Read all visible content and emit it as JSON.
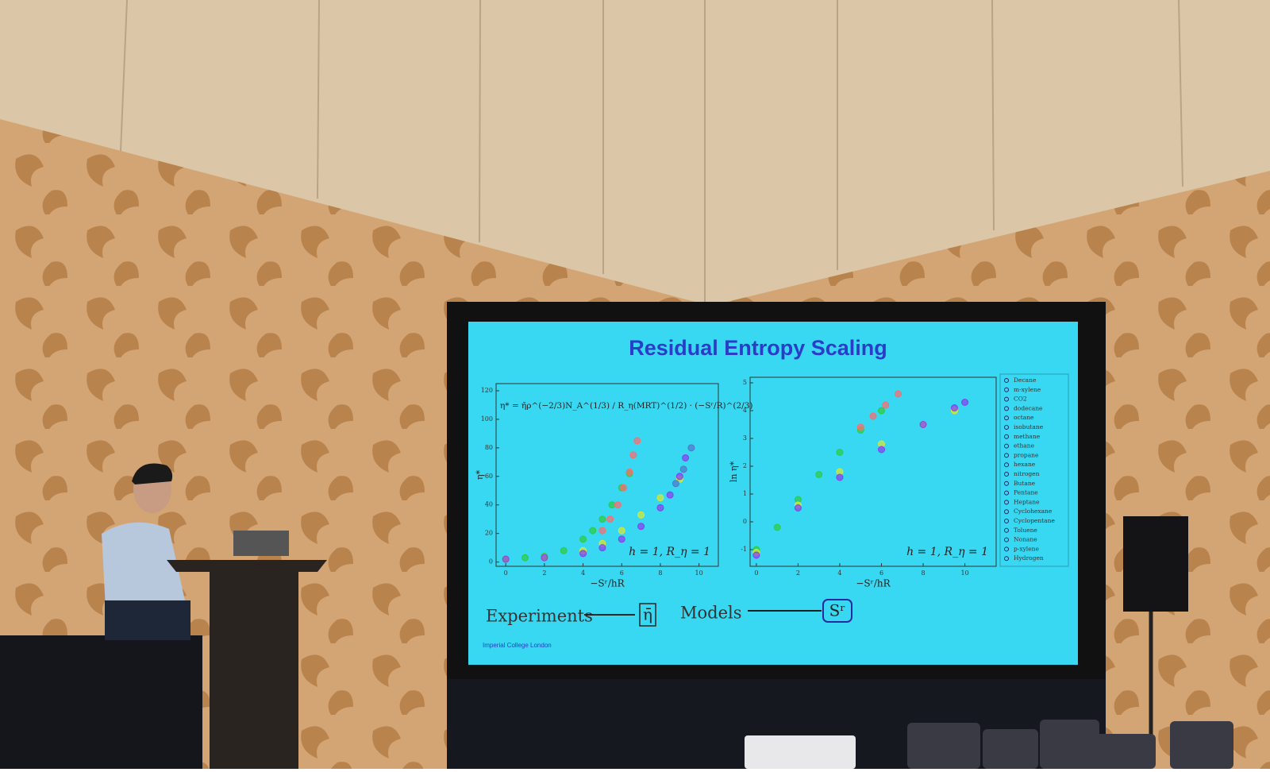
{
  "slide": {
    "title": "Residual Entropy Scaling",
    "footer": "Imperial College London",
    "bottom": {
      "left_text": "Experiments",
      "left_symbol": "η̄",
      "right_text": "Models",
      "right_symbol": "Sʳ"
    }
  },
  "chart_data": [
    {
      "type": "scatter",
      "x_label": "−Sʳ/hR",
      "y_label": "η*",
      "annotation": "η* = η̄ρ^(−2/3)N_A^(1/3) / R_η(MRT)^(1/2) · (−Sʳ/R)^(2/3)",
      "note": "h = 1,   R_η = 1",
      "xlim": [
        -0.5,
        11
      ],
      "xticks": [
        0,
        2,
        4,
        6,
        8,
        10
      ],
      "ylim": [
        -3,
        125
      ],
      "yticks": [
        0,
        20,
        40,
        60,
        80,
        100,
        120
      ],
      "series": [
        {
          "color": "#2ecc40",
          "x": [
            0,
            1,
            2,
            3,
            4,
            4.5,
            5,
            5.5,
            6,
            6.4
          ],
          "values": [
            2,
            3,
            4,
            8,
            16,
            22,
            30,
            40,
            52,
            62
          ]
        },
        {
          "color": "#ff6b6b",
          "x": [
            5,
            5.4,
            5.8,
            6.1,
            6.4,
            6.6,
            6.8
          ],
          "values": [
            22,
            30,
            40,
            52,
            63,
            75,
            85
          ]
        },
        {
          "color": "#d8e830",
          "x": [
            0,
            2,
            4,
            5,
            6,
            7,
            8,
            9
          ],
          "values": [
            2,
            3,
            8,
            13,
            22,
            33,
            45,
            58
          ]
        },
        {
          "color": "#8a3cf0",
          "x": [
            0,
            2,
            4,
            5,
            6,
            7,
            8,
            8.5,
            9,
            9.3
          ],
          "values": [
            2,
            3,
            6,
            10,
            16,
            25,
            38,
            47,
            60,
            73
          ]
        },
        {
          "color": "#5078c8",
          "x": [
            8.8,
            9.2,
            9.6
          ],
          "values": [
            55,
            65,
            80
          ]
        }
      ]
    },
    {
      "type": "scatter",
      "x_label": "−Sʳ/hR",
      "y_label": "ln η*",
      "note": "h = 1,   R_η = 1",
      "xlim": [
        -0.3,
        11.5
      ],
      "xticks": [
        0,
        2,
        4,
        6,
        8,
        10
      ],
      "ylim": [
        -1.6,
        5.2
      ],
      "yticks": [
        -1,
        0,
        1,
        2,
        3,
        4,
        5
      ],
      "series": [
        {
          "color": "#2ecc40",
          "x": [
            0,
            1,
            2,
            3,
            4,
            5,
            6
          ],
          "values": [
            -1,
            -0.2,
            0.8,
            1.7,
            2.5,
            3.3,
            4.0
          ]
        },
        {
          "color": "#ff6b6b",
          "x": [
            5,
            5.6,
            6.2,
            6.8
          ],
          "values": [
            3.4,
            3.8,
            4.2,
            4.6
          ]
        },
        {
          "color": "#d8e830",
          "x": [
            0,
            2,
            4,
            6,
            8,
            9.5
          ],
          "values": [
            -1.1,
            0.6,
            1.8,
            2.8,
            3.5,
            4.0
          ]
        },
        {
          "color": "#8a3cf0",
          "x": [
            0,
            2,
            4,
            6,
            8,
            9.5,
            10
          ],
          "values": [
            -1.2,
            0.5,
            1.6,
            2.6,
            3.5,
            4.1,
            4.3
          ]
        }
      ],
      "legend_entries": [
        "Decane",
        "m-xylene",
        "CO2",
        "dodecane",
        "octane",
        "isobutane",
        "methane",
        "ethane",
        "propane",
        "hexane",
        "nitrogen",
        "Butane",
        "Pentane",
        "Heptane",
        "Cyclohexane",
        "Cyclopentane",
        "Toluene",
        "Nonane",
        "p-xylene",
        "Hydrogen"
      ]
    }
  ]
}
